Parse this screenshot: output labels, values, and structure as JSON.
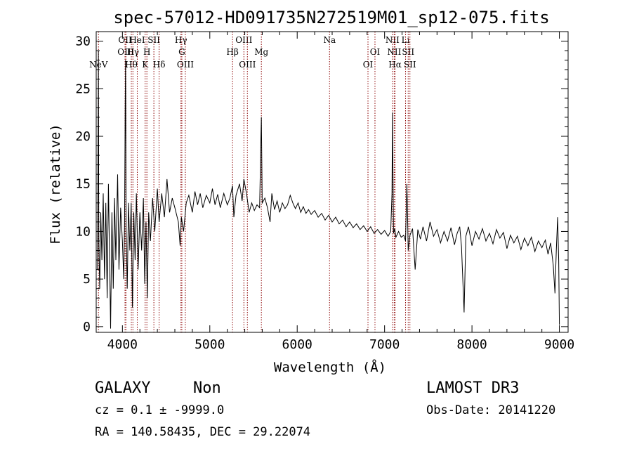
{
  "chart_data": {
    "type": "line",
    "title": "spec-57012-HD091735N272519M01_sp12-075.fits",
    "xlabel": "Wavelength (Å)",
    "ylabel": "Flux (relative)",
    "xlim": [
      3700,
      9100
    ],
    "ylim": [
      -0.6,
      31.0
    ],
    "x_ticks": [
      4000,
      5000,
      6000,
      7000,
      8000,
      9000
    ],
    "y_ticks": [
      0,
      5,
      10,
      15,
      20,
      25,
      30
    ],
    "colors": {
      "spectrum": "#000000",
      "line_marker": "#8b0000"
    },
    "line_markers": [
      {
        "x": 3726,
        "label": "NeV",
        "row": 2
      },
      {
        "x": 4030,
        "label": "OII",
        "row": 0
      },
      {
        "x": 4040,
        "label": "OIII",
        "row": 1
      },
      {
        "x": 4102,
        "label": "Hθ",
        "row": 2
      },
      {
        "x": 4120,
        "label": "Hγ",
        "row": 1
      },
      {
        "x": 4170,
        "label": "HeI",
        "row": 0
      },
      {
        "x": 4260,
        "label": "K",
        "row": 2
      },
      {
        "x": 4280,
        "label": "H",
        "row": 1
      },
      {
        "x": 4360,
        "label": "SII",
        "row": 0
      },
      {
        "x": 4420,
        "label": "Hδ",
        "row": 2
      },
      {
        "x": 4670,
        "label": "Hγ",
        "row": 0
      },
      {
        "x": 4680,
        "label": "G",
        "row": 1
      },
      {
        "x": 4720,
        "label": "OIII",
        "row": 2
      },
      {
        "x": 5260,
        "label": "Hβ",
        "row": 1
      },
      {
        "x": 5390,
        "label": "OIII",
        "row": 0
      },
      {
        "x": 5430,
        "label": "OIII",
        "row": 2
      },
      {
        "x": 5590,
        "label": "Mg",
        "row": 1
      },
      {
        "x": 6370,
        "label": "Na",
        "row": 0
      },
      {
        "x": 6810,
        "label": "OI",
        "row": 2
      },
      {
        "x": 6890,
        "label": "OI",
        "row": 1
      },
      {
        "x": 7090,
        "label": "NII",
        "row": 0
      },
      {
        "x": 7110,
        "label": "NII",
        "row": 1
      },
      {
        "x": 7120,
        "label": "Hα",
        "row": 2
      },
      {
        "x": 7240,
        "label": "Li",
        "row": 0
      },
      {
        "x": 7270,
        "label": "SII",
        "row": 1
      },
      {
        "x": 7290,
        "label": "SII",
        "row": 2
      }
    ],
    "series": [
      {
        "name": "spectrum",
        "points": [
          [
            3715,
            6.0
          ],
          [
            3722,
            22.0
          ],
          [
            3725,
            29.0
          ],
          [
            3730,
            9.0
          ],
          [
            3740,
            4.0
          ],
          [
            3752,
            12.0
          ],
          [
            3765,
            7.0
          ],
          [
            3780,
            14.0
          ],
          [
            3795,
            5.0
          ],
          [
            3810,
            13.0
          ],
          [
            3825,
            3.0
          ],
          [
            3840,
            15.0
          ],
          [
            3855,
            6.0
          ],
          [
            3865,
            -0.2
          ],
          [
            3880,
            12.0
          ],
          [
            3895,
            4.0
          ],
          [
            3910,
            13.5
          ],
          [
            3925,
            7.0
          ],
          [
            3945,
            16.0
          ],
          [
            3960,
            6.0
          ],
          [
            3980,
            12.5
          ],
          [
            4000,
            9.0
          ],
          [
            4015,
            5.0
          ],
          [
            4025,
            11.0
          ],
          [
            4032,
            23.0
          ],
          [
            4036,
            28.0
          ],
          [
            4042,
            10.0
          ],
          [
            4055,
            4.0
          ],
          [
            4070,
            13.0
          ],
          [
            4085,
            8.0
          ],
          [
            4100,
            13.0
          ],
          [
            4115,
            2.0
          ],
          [
            4130,
            12.0
          ],
          [
            4145,
            7.0
          ],
          [
            4160,
            14.0
          ],
          [
            4180,
            6.0
          ],
          [
            4200,
            12.0
          ],
          [
            4220,
            8.0
          ],
          [
            4240,
            13.5
          ],
          [
            4255,
            4.5
          ],
          [
            4270,
            11.0
          ],
          [
            4285,
            3.0
          ],
          [
            4300,
            12.0
          ],
          [
            4320,
            9.0
          ],
          [
            4345,
            13.5
          ],
          [
            4370,
            10.0
          ],
          [
            4400,
            14.5
          ],
          [
            4420,
            11.0
          ],
          [
            4450,
            14.0
          ],
          [
            4480,
            11.5
          ],
          [
            4510,
            15.5
          ],
          [
            4540,
            12.0
          ],
          [
            4570,
            13.5
          ],
          [
            4600,
            12.5
          ],
          [
            4640,
            11.0
          ],
          [
            4660,
            8.5
          ],
          [
            4675,
            11.5
          ],
          [
            4700,
            10.0
          ],
          [
            4730,
            13.0
          ],
          [
            4760,
            13.8
          ],
          [
            4800,
            12.0
          ],
          [
            4830,
            14.2
          ],
          [
            4860,
            12.8
          ],
          [
            4890,
            14.0
          ],
          [
            4920,
            12.5
          ],
          [
            4960,
            13.8
          ],
          [
            5000,
            13.0
          ],
          [
            5030,
            14.5
          ],
          [
            5060,
            12.8
          ],
          [
            5090,
            13.9
          ],
          [
            5120,
            12.5
          ],
          [
            5160,
            14.0
          ],
          [
            5200,
            12.8
          ],
          [
            5230,
            13.5
          ],
          [
            5260,
            14.8
          ],
          [
            5275,
            11.5
          ],
          [
            5300,
            13.8
          ],
          [
            5340,
            15.0
          ],
          [
            5370,
            13.2
          ],
          [
            5390,
            15.5
          ],
          [
            5420,
            14.0
          ],
          [
            5450,
            12.0
          ],
          [
            5480,
            13.0
          ],
          [
            5510,
            12.2
          ],
          [
            5540,
            12.8
          ],
          [
            5570,
            12.5
          ],
          [
            5585,
            20.0
          ],
          [
            5590,
            22.0
          ],
          [
            5600,
            13.0
          ],
          [
            5630,
            13.5
          ],
          [
            5660,
            12.5
          ],
          [
            5690,
            11.0
          ],
          [
            5710,
            14.0
          ],
          [
            5740,
            12.3
          ],
          [
            5770,
            13.2
          ],
          [
            5800,
            12.0
          ],
          [
            5830,
            13.0
          ],
          [
            5860,
            12.4
          ],
          [
            5890,
            12.8
          ],
          [
            5920,
            13.8
          ],
          [
            5950,
            13.0
          ],
          [
            5980,
            12.4
          ],
          [
            6010,
            13.0
          ],
          [
            6040,
            12.0
          ],
          [
            6070,
            12.6
          ],
          [
            6100,
            11.9
          ],
          [
            6130,
            12.3
          ],
          [
            6160,
            11.8
          ],
          [
            6200,
            12.2
          ],
          [
            6240,
            11.5
          ],
          [
            6280,
            11.9
          ],
          [
            6320,
            11.2
          ],
          [
            6360,
            11.7
          ],
          [
            6400,
            11.0
          ],
          [
            6440,
            11.5
          ],
          [
            6480,
            10.8
          ],
          [
            6520,
            11.2
          ],
          [
            6560,
            10.5
          ],
          [
            6600,
            11.0
          ],
          [
            6640,
            10.4
          ],
          [
            6680,
            10.8
          ],
          [
            6720,
            10.2
          ],
          [
            6760,
            10.6
          ],
          [
            6800,
            10.0
          ],
          [
            6840,
            10.5
          ],
          [
            6880,
            9.8
          ],
          [
            6920,
            10.2
          ],
          [
            6960,
            9.7
          ],
          [
            7000,
            10.1
          ],
          [
            7040,
            9.5
          ],
          [
            7070,
            10.0
          ],
          [
            7085,
            14.0
          ],
          [
            7090,
            22.5
          ],
          [
            7095,
            17.0
          ],
          [
            7102,
            9.8
          ],
          [
            7115,
            10.3
          ],
          [
            7130,
            9.4
          ],
          [
            7160,
            10.0
          ],
          [
            7190,
            9.4
          ],
          [
            7220,
            9.6
          ],
          [
            7240,
            9.0
          ],
          [
            7255,
            15.0
          ],
          [
            7262,
            12.0
          ],
          [
            7270,
            8.0
          ],
          [
            7290,
            9.6
          ],
          [
            7320,
            10.3
          ],
          [
            7350,
            6.0
          ],
          [
            7380,
            10.2
          ],
          [
            7410,
            9.2
          ],
          [
            7440,
            10.5
          ],
          [
            7480,
            9.0
          ],
          [
            7520,
            11.0
          ],
          [
            7560,
            9.5
          ],
          [
            7600,
            10.2
          ],
          [
            7640,
            8.8
          ],
          [
            7680,
            10.0
          ],
          [
            7720,
            9.0
          ],
          [
            7760,
            10.4
          ],
          [
            7800,
            8.6
          ],
          [
            7830,
            9.8
          ],
          [
            7860,
            10.5
          ],
          [
            7880,
            8.4
          ],
          [
            7910,
            1.5
          ],
          [
            7930,
            9.5
          ],
          [
            7960,
            10.5
          ],
          [
            8000,
            8.5
          ],
          [
            8040,
            10.0
          ],
          [
            8080,
            9.2
          ],
          [
            8120,
            10.3
          ],
          [
            8160,
            9.0
          ],
          [
            8200,
            9.8
          ],
          [
            8240,
            8.7
          ],
          [
            8280,
            10.2
          ],
          [
            8320,
            9.3
          ],
          [
            8360,
            9.9
          ],
          [
            8400,
            8.2
          ],
          [
            8440,
            9.6
          ],
          [
            8480,
            8.8
          ],
          [
            8520,
            9.5
          ],
          [
            8560,
            8.1
          ],
          [
            8600,
            9.3
          ],
          [
            8640,
            8.5
          ],
          [
            8680,
            9.4
          ],
          [
            8720,
            7.9
          ],
          [
            8760,
            9.0
          ],
          [
            8800,
            8.3
          ],
          [
            8840,
            9.1
          ],
          [
            8870,
            7.6
          ],
          [
            8900,
            8.8
          ],
          [
            8930,
            6.5
          ],
          [
            8950,
            3.5
          ],
          [
            8965,
            8.0
          ],
          [
            8980,
            11.5
          ],
          [
            8992,
            7.0
          ],
          [
            9000,
            0.2
          ]
        ]
      }
    ]
  },
  "info": {
    "object_class": "GALAXY",
    "subclass": "Non",
    "survey": "LAMOST DR3",
    "cz": "cz = 0.1 ± -9999.0",
    "obs_date": "Obs-Date: 20141220",
    "coords": "RA = 140.58435, DEC =  29.22074"
  }
}
